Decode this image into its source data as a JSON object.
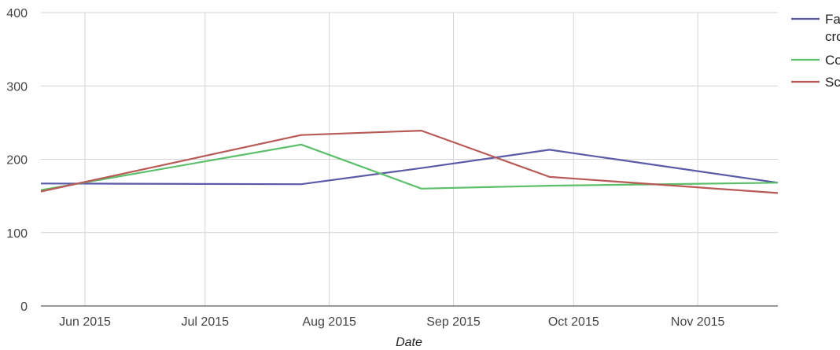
{
  "chart_data": {
    "type": "line",
    "xlabel": "Date",
    "ylabel": "",
    "ylim": [
      0,
      400
    ],
    "yticks": [
      0,
      100,
      200,
      300,
      400
    ],
    "x_tick_labels": [
      {
        "date": "2015-06-01",
        "label": "Jun 2015"
      },
      {
        "date": "2015-07-01",
        "label": "Jul 2015"
      },
      {
        "date": "2015-08-01",
        "label": "Aug 2015"
      },
      {
        "date": "2015-09-01",
        "label": "Sep 2015"
      },
      {
        "date": "2015-10-01",
        "label": "Oct 2015"
      },
      {
        "date": "2015-11-01",
        "label": "Nov 2015"
      }
    ],
    "x_range": [
      "2015-05-21",
      "2015-11-21"
    ],
    "grid": true,
    "legend_position": "right",
    "x": [
      "2015-05-21",
      "2015-07-25",
      "2015-08-24",
      "2015-09-25",
      "2015-11-21"
    ],
    "series": [
      {
        "name": "Fa\ncro",
        "color": "#5a5aa8",
        "values": [
          167,
          166,
          188,
          213,
          168
        ]
      },
      {
        "name": "Co",
        "color": "#5cbf6a",
        "values": [
          158,
          220,
          160,
          164,
          168
        ]
      },
      {
        "name": "Sc",
        "color": "#b85a55",
        "values": [
          156,
          233,
          239,
          176,
          154
        ]
      }
    ]
  }
}
